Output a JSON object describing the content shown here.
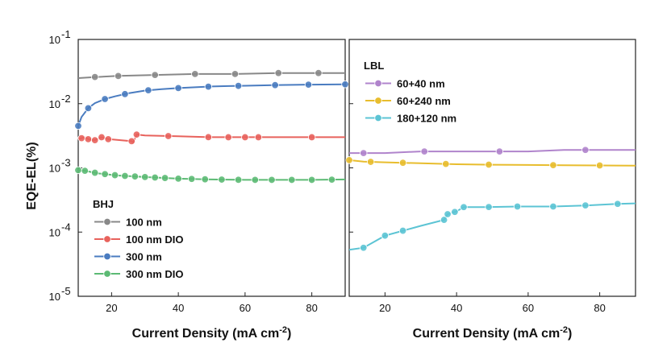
{
  "chart_data": [
    {
      "type": "line",
      "panel": "left",
      "xlabel": "Current Density (mA cm",
      "xlabel_sup": "-2",
      "xlabel_tail": ")",
      "ylabel": "EQE-EL(%)",
      "xlim": [
        10,
        90
      ],
      "ylim_log10": [
        -5,
        -1
      ],
      "scale_y": "log",
      "x_ticks": [
        20,
        40,
        60,
        80
      ],
      "x_tick_labels": [
        "20",
        "40",
        "60",
        "80"
      ],
      "y_ticks": [
        -1,
        -2,
        -3,
        -4,
        -5
      ],
      "y_tick_labels": [
        {
          "base": "10",
          "exp": "-1"
        },
        {
          "base": "10",
          "exp": "-2"
        },
        {
          "base": "10",
          "exp": "-3"
        },
        {
          "base": "10",
          "exp": "-4"
        },
        {
          "base": "10",
          "exp": "-5"
        }
      ],
      "legend_title": "BHJ",
      "legend_position": "bottom-left",
      "series": [
        {
          "name": "100 nm",
          "color": "#888888",
          "x": [
            10,
            15,
            22,
            33,
            45,
            57,
            70,
            82,
            90
          ],
          "y": [
            0.025,
            0.026,
            0.027,
            0.028,
            0.029,
            0.029,
            0.03,
            0.03,
            0.03
          ],
          "markers": [
            15,
            22,
            33,
            45,
            57,
            70,
            82
          ]
        },
        {
          "name": "100 nm DIO",
          "color": "#e8625c",
          "x": [
            10,
            11,
            12,
            13,
            15,
            17,
            19,
            26,
            26.5,
            27.5,
            30,
            40,
            50,
            60,
            70,
            80,
            90
          ],
          "y": [
            0.0028,
            0.0029,
            0.003,
            0.0028,
            0.0027,
            0.003,
            0.0028,
            0.0026,
            0.0025,
            0.0033,
            0.0032,
            0.0031,
            0.003,
            0.003,
            0.003,
            0.003,
            0.003
          ],
          "markers": [
            11,
            13,
            15,
            17,
            19,
            26,
            27.5,
            37,
            49,
            55,
            60,
            64,
            80
          ]
        },
        {
          "name": "300 nm",
          "color": "#4a7cc0",
          "x": [
            10,
            11,
            13,
            15,
            18,
            21,
            25,
            30,
            35,
            40,
            45,
            50,
            55,
            60,
            70,
            80,
            90
          ],
          "y": [
            0.0045,
            0.0062,
            0.0085,
            0.0102,
            0.0118,
            0.013,
            0.0145,
            0.016,
            0.0168,
            0.0175,
            0.018,
            0.0185,
            0.0188,
            0.019,
            0.0195,
            0.0198,
            0.02
          ],
          "markers": [
            10,
            13,
            18,
            24,
            31,
            40,
            49,
            58,
            69,
            79,
            90
          ]
        },
        {
          "name": "300 nm DIO",
          "color": "#5cba74",
          "x": [
            10,
            12,
            16,
            22,
            30,
            40,
            50,
            60,
            70,
            80,
            90
          ],
          "y": [
            0.00092,
            0.0009,
            0.00082,
            0.00076,
            0.00072,
            0.00068,
            0.00066,
            0.00065,
            0.00065,
            0.00065,
            0.00066
          ],
          "markers": [
            10,
            12,
            15,
            18,
            21,
            24,
            27,
            30,
            33,
            36,
            40,
            44,
            48,
            53,
            58,
            63,
            68,
            74,
            80,
            86
          ]
        }
      ]
    },
    {
      "type": "line",
      "panel": "right",
      "xlabel": "Current Density (mA cm",
      "xlabel_sup": "-2",
      "xlabel_tail": ")",
      "xlim": [
        10,
        90
      ],
      "ylim_log10": [
        -5,
        -1
      ],
      "scale_y": "log",
      "x_ticks": [
        20,
        40,
        60,
        80
      ],
      "x_tick_labels": [
        "20",
        "40",
        "60",
        "80"
      ],
      "legend_title": "LBL",
      "legend_position": "top-left",
      "series": [
        {
          "name": "60+40 nm",
          "color": "#b084cc",
          "x": [
            10,
            14,
            20,
            30,
            40,
            50,
            60,
            70,
            80,
            90
          ],
          "y": [
            0.0017,
            0.0017,
            0.0017,
            0.0018,
            0.0018,
            0.0018,
            0.0018,
            0.0019,
            0.0019,
            0.0019
          ],
          "markers": [
            14,
            31,
            52,
            76
          ]
        },
        {
          "name": "60+240 nm",
          "color": "#e8bd2e",
          "x": [
            10,
            14,
            20,
            30,
            40,
            50,
            60,
            70,
            80,
            90
          ],
          "y": [
            0.00132,
            0.00125,
            0.00122,
            0.00118,
            0.00114,
            0.00112,
            0.00111,
            0.0011,
            0.00109,
            0.00108
          ],
          "markers": [
            10,
            16,
            25,
            37,
            49,
            67,
            80
          ]
        },
        {
          "name": "180+120 nm",
          "color": "#5cc4d4",
          "x": [
            10,
            14,
            20,
            25,
            30,
            36.5,
            37.5,
            40,
            42,
            48,
            57,
            67,
            76,
            85,
            90
          ],
          "y": [
            5.3e-05,
            5.7e-05,
            8.8e-05,
            0.000105,
            0.000125,
            0.000155,
            0.00019,
            0.00021,
            0.000245,
            0.000245,
            0.00025,
            0.00025,
            0.00026,
            0.000275,
            0.00028
          ],
          "markers": [
            14,
            20,
            25,
            36.5,
            37.5,
            39.5,
            42,
            49,
            57,
            67,
            76,
            85
          ]
        }
      ]
    }
  ]
}
